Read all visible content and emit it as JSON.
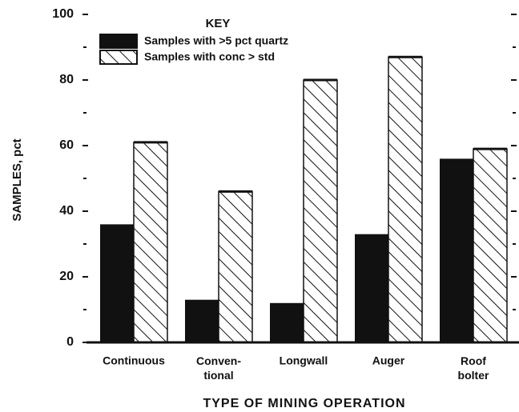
{
  "chart_data": {
    "type": "bar",
    "ylabel": "SAMPLES, pct",
    "xlabel": "TYPE OF MINING OPERATION",
    "legend_title": "KEY",
    "categories": [
      "Continuous",
      "Conven-\ntional",
      "Longwall",
      "Auger",
      "Roof\nbolter"
    ],
    "series": [
      {
        "name": "Samples with >5 pct quartz",
        "color": "#111111",
        "pattern": "solid",
        "values": [
          36,
          13,
          12,
          33,
          56
        ]
      },
      {
        "name": "Samples with conc > std",
        "color": "#111111",
        "pattern": "hatch",
        "values": [
          61,
          46,
          80,
          87,
          59
        ]
      }
    ],
    "ylim": [
      0,
      100
    ],
    "yticks": [
      0,
      20,
      40,
      60,
      80,
      100
    ],
    "yminor_ticks": [
      10,
      30,
      50,
      70,
      90
    ],
    "grid": false,
    "legend": "top-left"
  }
}
